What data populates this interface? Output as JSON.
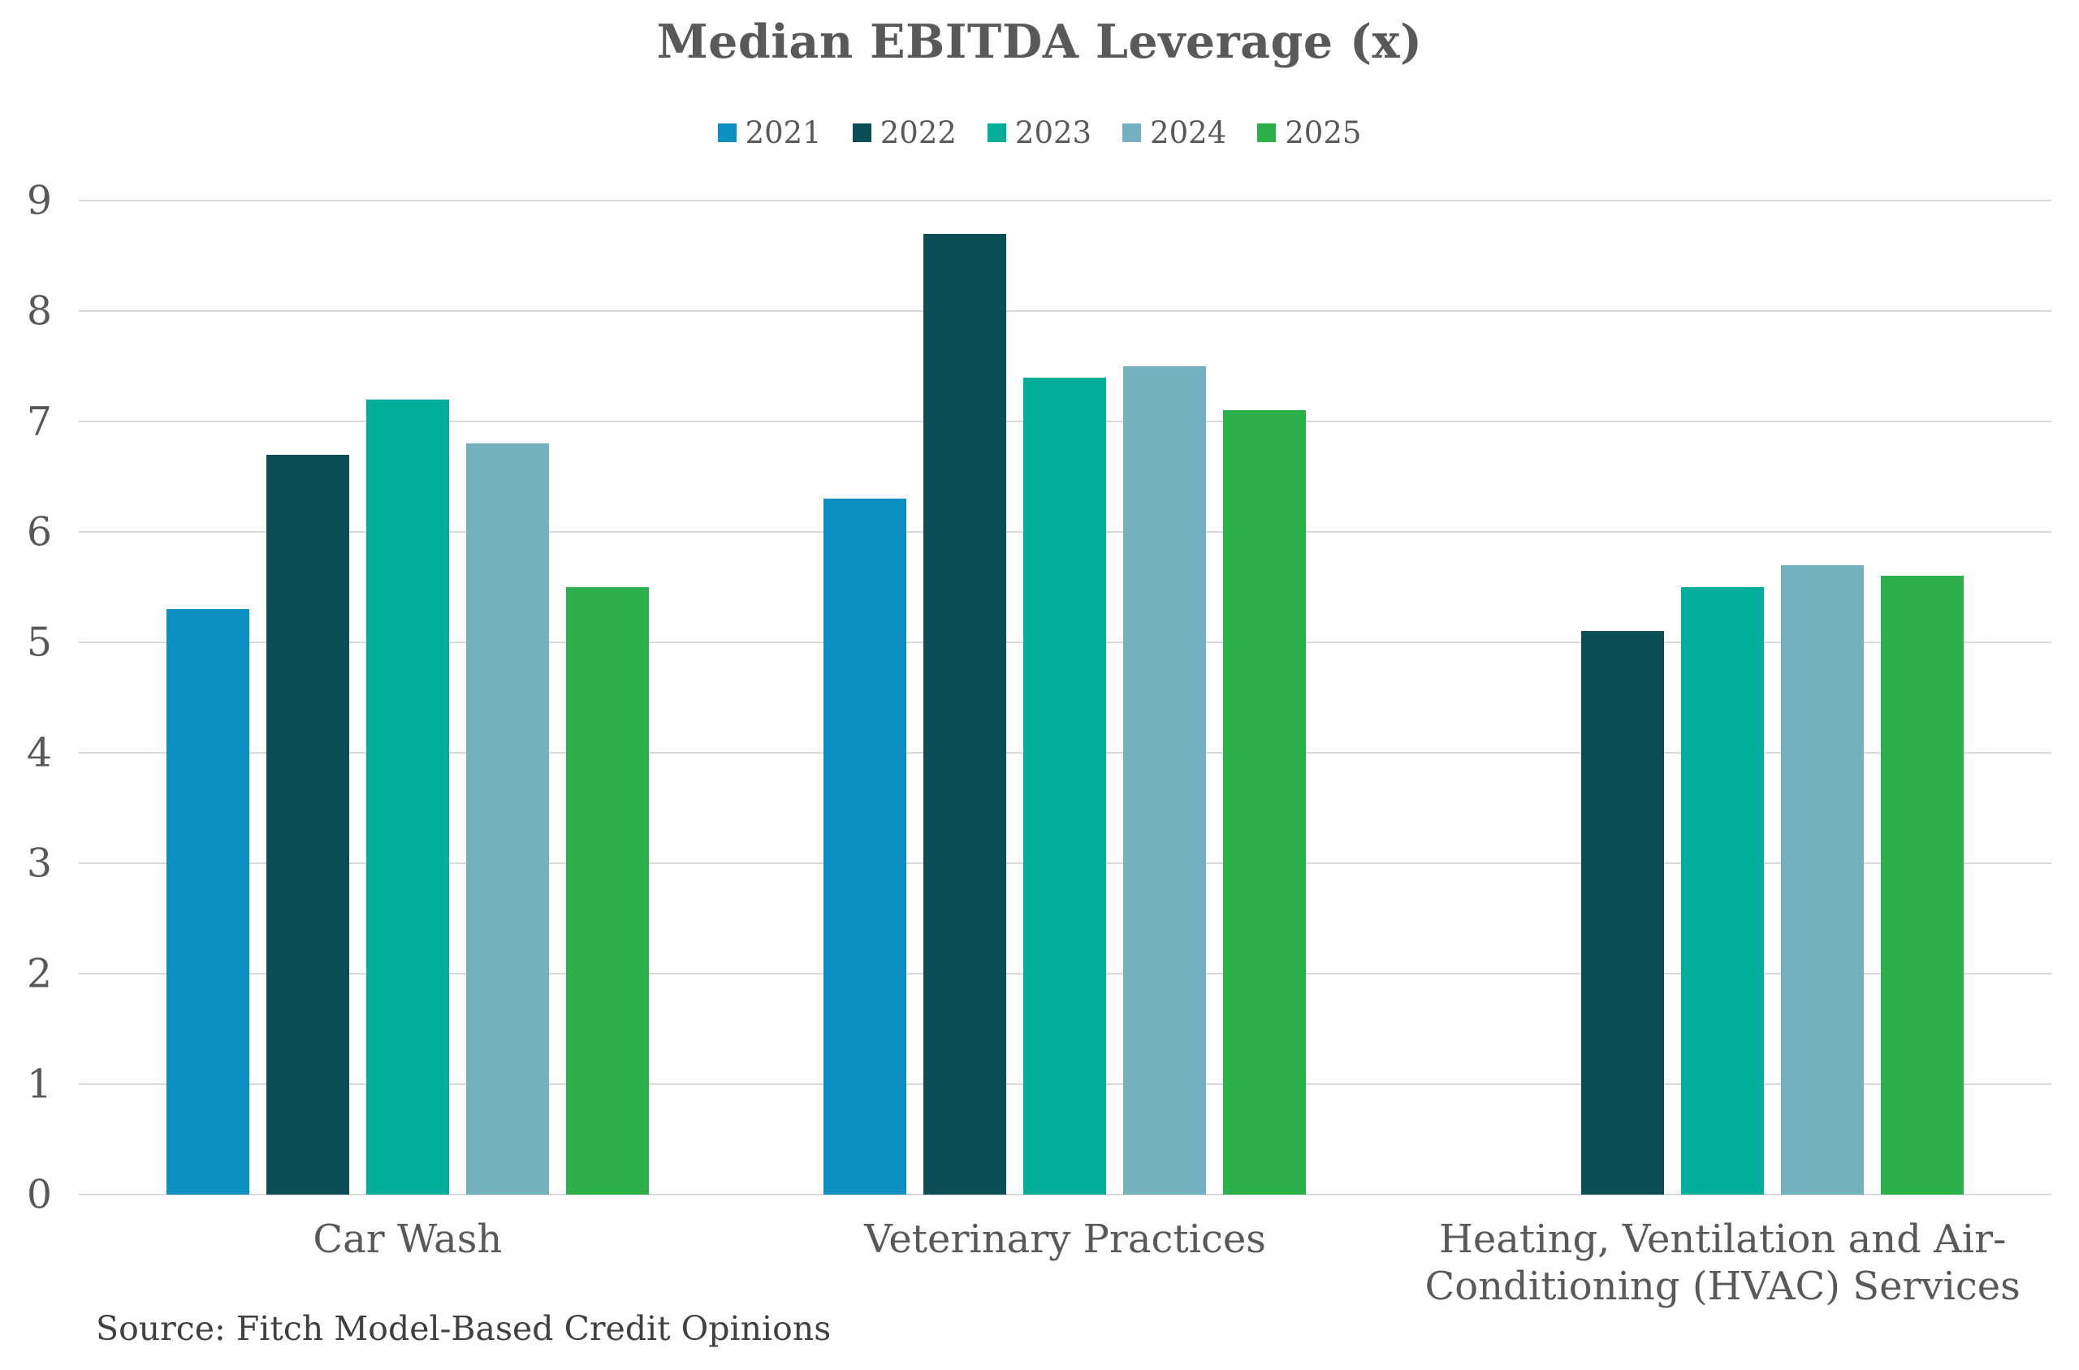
{
  "source_note": "Source: Fitch Model-Based Credit Opinions",
  "colors": {
    "text_gray": "#595959",
    "gridline": "#d9d9d9",
    "background": "#ffffff"
  },
  "chart_data": {
    "type": "bar",
    "title": "Median EBITDA Leverage (x)",
    "categories": [
      "Car Wash",
      "Veterinary Practices",
      "Heating, Ventilation and Air-Conditioning (HVAC) Services"
    ],
    "category_label_lines": [
      [
        "Car Wash"
      ],
      [
        "Veterinary Practices"
      ],
      [
        "Heating, Ventilation and Air-",
        "Conditioning (HVAC) Services"
      ]
    ],
    "series": [
      {
        "name": "2021",
        "color": "#0a91c2",
        "values": [
          5.3,
          6.3,
          null
        ]
      },
      {
        "name": "2022",
        "color": "#0b4e56",
        "values": [
          6.7,
          8.7,
          5.1
        ]
      },
      {
        "name": "2023",
        "color": "#02ae9b",
        "values": [
          7.2,
          7.4,
          5.5
        ]
      },
      {
        "name": "2024",
        "color": "#73b1c1",
        "values": [
          6.8,
          7.5,
          5.7
        ]
      },
      {
        "name": "2025",
        "color": "#2bb04b",
        "values": [
          5.5,
          7.1,
          5.6
        ]
      }
    ],
    "xlabel": "",
    "ylabel": "",
    "ylim": [
      0,
      9
    ],
    "yticks": [
      0,
      1,
      2,
      3,
      4,
      5,
      6,
      7,
      8,
      9
    ],
    "grid": true,
    "legend_position": "top"
  }
}
